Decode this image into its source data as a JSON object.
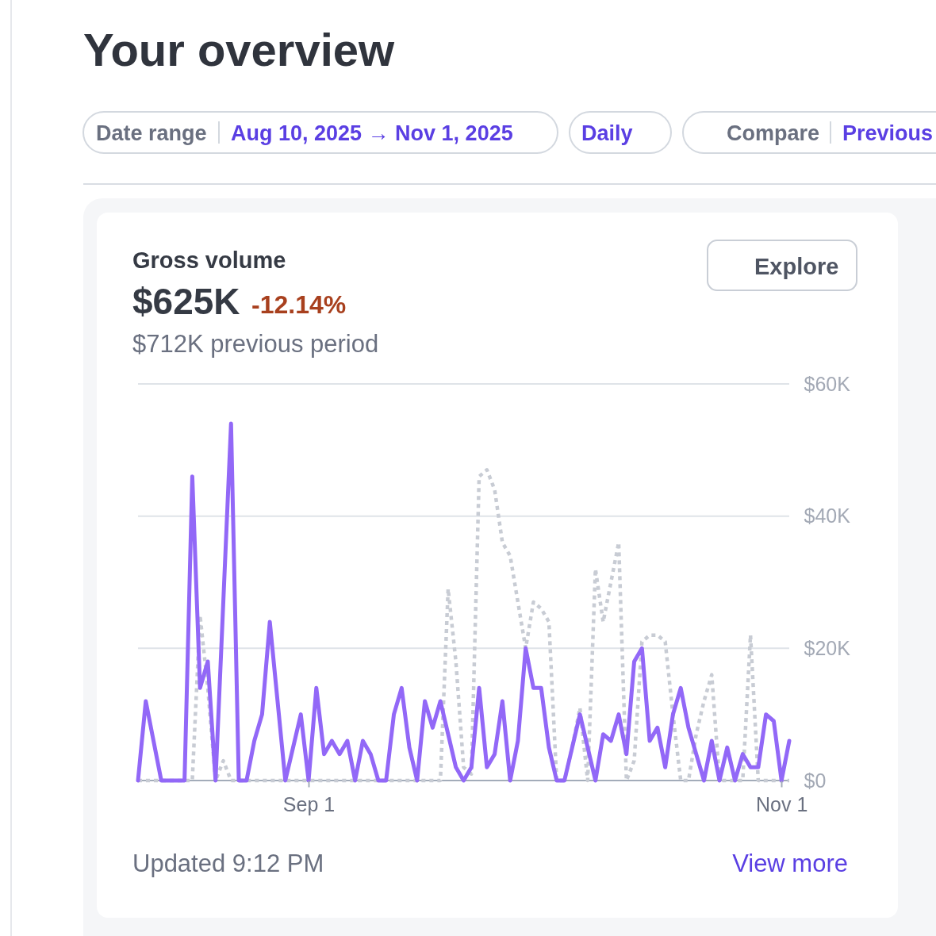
{
  "chart_data": {
    "type": "line",
    "title": "Gross volume",
    "annotations": [
      "Your overview",
      "Date range",
      "Aug 10, 2025 → Nov 1, 2025",
      "Daily",
      "Compare",
      "Previous",
      "$625K",
      "-12.14%",
      "$712K previous period",
      "Explore",
      "Updated 9:12 PM",
      "View more"
    ],
    "x": [
      "2025-08-10",
      "2025-08-11",
      "2025-08-12",
      "2025-08-13",
      "2025-08-14",
      "2025-08-15",
      "2025-08-16",
      "2025-08-17",
      "2025-08-18",
      "2025-08-19",
      "2025-08-20",
      "2025-08-21",
      "2025-08-22",
      "2025-08-23",
      "2025-08-24",
      "2025-08-25",
      "2025-08-26",
      "2025-08-27",
      "2025-08-28",
      "2025-08-29",
      "2025-08-30",
      "2025-08-31",
      "2025-09-01",
      "2025-09-02",
      "2025-09-03",
      "2025-09-04",
      "2025-09-05",
      "2025-09-06",
      "2025-09-07",
      "2025-09-08",
      "2025-09-09",
      "2025-09-10",
      "2025-09-11",
      "2025-09-12",
      "2025-09-13",
      "2025-09-14",
      "2025-09-15",
      "2025-09-16",
      "2025-09-17",
      "2025-09-18",
      "2025-09-19",
      "2025-09-20",
      "2025-09-21",
      "2025-09-22",
      "2025-09-23",
      "2025-09-24",
      "2025-09-25",
      "2025-09-26",
      "2025-09-27",
      "2025-09-28",
      "2025-09-29",
      "2025-09-30",
      "2025-10-01",
      "2025-10-02",
      "2025-10-03",
      "2025-10-04",
      "2025-10-05",
      "2025-10-06",
      "2025-10-07",
      "2025-10-08",
      "2025-10-09",
      "2025-10-10",
      "2025-10-11",
      "2025-10-12",
      "2025-10-13",
      "2025-10-14",
      "2025-10-15",
      "2025-10-16",
      "2025-10-17",
      "2025-10-18",
      "2025-10-19",
      "2025-10-20",
      "2025-10-21",
      "2025-10-22",
      "2025-10-23",
      "2025-10-24",
      "2025-10-25",
      "2025-10-26",
      "2025-10-27",
      "2025-10-28",
      "2025-10-29",
      "2025-10-30",
      "2025-10-31",
      "2025-11-01",
      "2025-11-02"
    ],
    "series": [
      {
        "color": "#9268f7",
        "values": [
          0,
          12000,
          6000,
          0,
          0,
          0,
          0,
          46000,
          14000,
          18000,
          0,
          27000,
          54000,
          0,
          0,
          6000,
          10000,
          24000,
          12000,
          0,
          5000,
          10000,
          0,
          14000,
          4000,
          6000,
          4000,
          6000,
          0,
          6000,
          4000,
          0,
          0,
          10000,
          14000,
          5000,
          0,
          12000,
          8000,
          12000,
          7000,
          2000,
          0,
          2000,
          14000,
          2000,
          4000,
          12000,
          0,
          6000,
          20000,
          14000,
          14000,
          5000,
          0,
          0,
          5000,
          10000,
          5000,
          0,
          7000,
          6000,
          10000,
          4000,
          18000,
          20000,
          6000,
          8000,
          2000,
          10000,
          14000,
          8000,
          4000,
          0,
          6000,
          0,
          5000,
          0,
          4000,
          2000,
          2000,
          10000,
          9000,
          0,
          6000
        ]
      },
      {
        "color": "#c8ccd4",
        "line_style": "dotted",
        "values": [
          0,
          0,
          0,
          0,
          0,
          0,
          0,
          0,
          25000,
          14000,
          0,
          3000,
          0,
          0,
          0,
          0,
          0,
          0,
          0,
          0,
          0,
          0,
          0,
          0,
          0,
          0,
          0,
          0,
          0,
          0,
          0,
          0,
          0,
          0,
          0,
          0,
          0,
          0,
          0,
          0,
          29000,
          18000,
          2000,
          1000,
          46000,
          47000,
          44000,
          36000,
          34000,
          27000,
          20000,
          27000,
          26000,
          24000,
          0,
          0,
          5000,
          11000,
          0,
          32000,
          24000,
          30000,
          36000,
          0,
          3000,
          21000,
          22000,
          22000,
          21000,
          10000,
          0,
          0,
          7000,
          12000,
          16000,
          0,
          0,
          0,
          0,
          22000,
          0,
          0,
          0,
          0,
          0
        ]
      }
    ],
    "line_style": "solid",
    "xlim": [
      "2025-08-10",
      "2025-11-02"
    ],
    "xticks": [
      {
        "value": "2025-09-01",
        "label": "Sep 1"
      },
      {
        "value": "2025-11-01",
        "label": "Nov 1"
      }
    ],
    "ylim": [
      0,
      60000
    ],
    "yticks": [
      {
        "value": 0,
        "label": "$0"
      },
      {
        "value": 20000,
        "label": "$20K"
      },
      {
        "value": 40000,
        "label": "$40K"
      },
      {
        "value": 60000,
        "label": "$60K"
      }
    ],
    "grid": "y"
  }
}
